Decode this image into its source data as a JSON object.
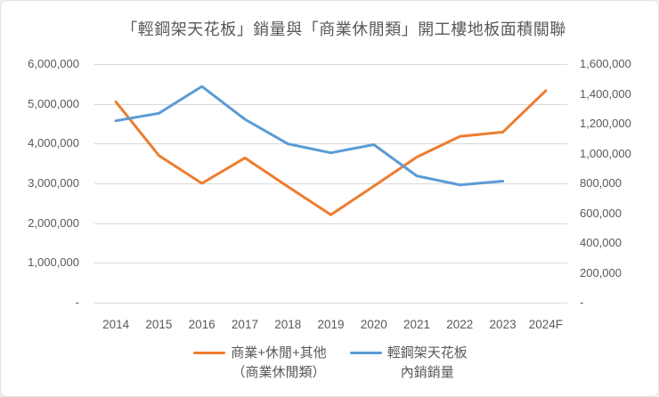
{
  "title": "「輕鋼架天花板」銷量與「商業休閒類」開工樓地板面積關聯",
  "chart_data": {
    "type": "line",
    "categories": [
      "2014",
      "2015",
      "2016",
      "2017",
      "2018",
      "2019",
      "2020",
      "2021",
      "2022",
      "2023",
      "2024F"
    ],
    "series": [
      {
        "name": "商業+休閒+其他（商業休閒類）",
        "axis": "left",
        "color": "#ED7D31",
        "values": [
          5050000,
          3700000,
          3000000,
          3640000,
          2920000,
          2210000,
          2930000,
          3660000,
          4180000,
          4290000,
          5330000
        ]
      },
      {
        "name": "輕鋼架天花板內銷銷量",
        "axis": "right",
        "color": "#5B9BD5",
        "values": [
          1220000,
          1270000,
          1450000,
          1230000,
          1065000,
          1005000,
          1060000,
          850000,
          790000,
          815000,
          null
        ]
      }
    ],
    "left_axis": {
      "min": 0,
      "max": 6000000,
      "step": 1000000,
      "labels": [
        "6,000,000",
        "5,000,000",
        "4,000,000",
        "3,000,000",
        "2,000,000",
        "1,000,000",
        "-"
      ]
    },
    "right_axis": {
      "min": 0,
      "max": 1600000,
      "step": 200000,
      "labels": [
        "1,600,000",
        "1,400,000",
        "1,200,000",
        "1,000,000",
        "800,000",
        "600,000",
        "400,000",
        "200,000",
        "-"
      ]
    },
    "grid": true,
    "legend_position": "bottom",
    "legend": [
      {
        "line1": "商業+休閒+其他",
        "line2": "（商業休閒類）"
      },
      {
        "line1": "輕鋼架天花板",
        "line2": "內銷銷量"
      }
    ],
    "gridline_color": "#d9d9d9",
    "text_color": "#595959"
  }
}
